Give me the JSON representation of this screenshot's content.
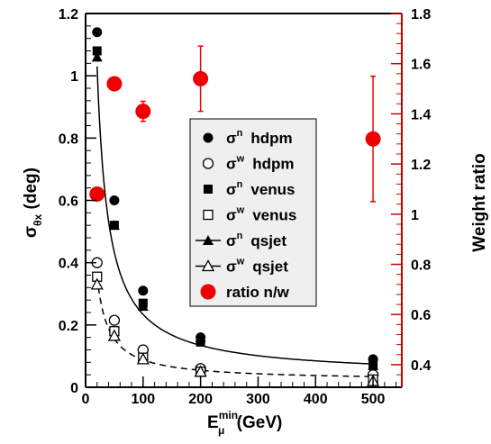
{
  "chart_data": {
    "type": "scatter",
    "title": "",
    "x_axis": {
      "label": "E",
      "label_sup": "min",
      "label_sub": "μ",
      "label_unit": "(GeV)",
      "range": [
        0,
        550
      ],
      "ticks": [
        0,
        100,
        200,
        300,
        400,
        500
      ],
      "tick_labels": [
        "0",
        "100",
        "200",
        "300",
        "400",
        "500"
      ]
    },
    "y_axis_left": {
      "label": "σ",
      "label_sub": "θx",
      "label_unit": "(deg)",
      "range": [
        0,
        1.2
      ],
      "ticks": [
        0,
        0.2,
        0.4,
        0.6,
        0.8,
        1.0,
        1.2
      ],
      "tick_labels": [
        "0",
        "0.2",
        "0.4",
        "0.6",
        "0.8",
        "1",
        "1.2"
      ]
    },
    "y_axis_right": {
      "label": "Weight ratio",
      "color": "#cc0000",
      "range": [
        0.31,
        1.8
      ],
      "ticks": [
        0.4,
        0.6,
        0.8,
        1.0,
        1.2,
        1.4,
        1.6,
        1.8
      ],
      "tick_labels": [
        "0.4",
        "0.6",
        "0.8",
        "1",
        "1.2",
        "1.4",
        "1.6",
        "1.8"
      ]
    },
    "grid": false,
    "legend_position": "center-right",
    "series": [
      {
        "name": "σⁿ  hdpm",
        "legend_main": "σ",
        "legend_sup": "n",
        "legend_text": "hdpm",
        "marker": "circle-filled",
        "axis": "left",
        "x": [
          20,
          50,
          100,
          200,
          500
        ],
        "y": [
          1.14,
          0.6,
          0.31,
          0.16,
          0.09
        ]
      },
      {
        "name": "σʷ  hdpm",
        "legend_main": "σ",
        "legend_sup": "w",
        "legend_text": "hdpm",
        "marker": "circle-open",
        "axis": "left",
        "x": [
          20,
          50,
          100,
          200,
          500
        ],
        "y": [
          0.4,
          0.215,
          0.12,
          0.06,
          0.04
        ]
      },
      {
        "name": "σⁿ  venus",
        "legend_main": "σ",
        "legend_sup": "n",
        "legend_text": "venus",
        "marker": "square-filled",
        "axis": "left",
        "x": [
          20,
          50,
          100,
          200,
          500
        ],
        "y": [
          1.08,
          0.52,
          0.27,
          0.145,
          0.07
        ]
      },
      {
        "name": "σʷ  venus",
        "legend_main": "σ",
        "legend_sup": "w",
        "legend_text": "venus",
        "marker": "square-open",
        "axis": "left",
        "x": [
          20,
          50,
          100,
          200,
          500
        ],
        "y": [
          0.355,
          0.18,
          0.095,
          0.05,
          0.025
        ]
      },
      {
        "name": "σⁿ  qsjet",
        "legend_main": "σ",
        "legend_sup": "n",
        "legend_text": "qsjet",
        "marker": "triangle-filled",
        "axis": "left",
        "x": [
          20,
          50,
          100,
          200,
          500
        ],
        "y": [
          1.06,
          0.52,
          0.26,
          0.16,
          0.07
        ]
      },
      {
        "name": "σʷ  qsjet",
        "legend_main": "σ",
        "legend_sup": "w",
        "legend_text": "qsjet",
        "marker": "triangle-open",
        "axis": "left",
        "x": [
          20,
          50,
          100,
          200,
          500
        ],
        "y": [
          0.33,
          0.165,
          0.09,
          0.05,
          0.02
        ]
      },
      {
        "name": "ratio n/w",
        "legend_text": "ratio n/w",
        "marker": "circle-red",
        "axis": "right",
        "color": "#ee0000",
        "x": [
          20,
          50,
          100,
          200,
          500
        ],
        "y": [
          1.08,
          1.52,
          1.41,
          1.54,
          1.3
        ],
        "err": [
          0,
          0,
          0.04,
          0.13,
          0.25
        ]
      }
    ],
    "fit_curves": [
      {
        "style": "solid",
        "axis": "left",
        "x_range": [
          20,
          500
        ],
        "a": 19.9,
        "b": 0.035
      },
      {
        "style": "dashed",
        "axis": "left",
        "x_range": [
          20,
          500
        ],
        "a": 6.7,
        "b": 0.021
      }
    ]
  }
}
